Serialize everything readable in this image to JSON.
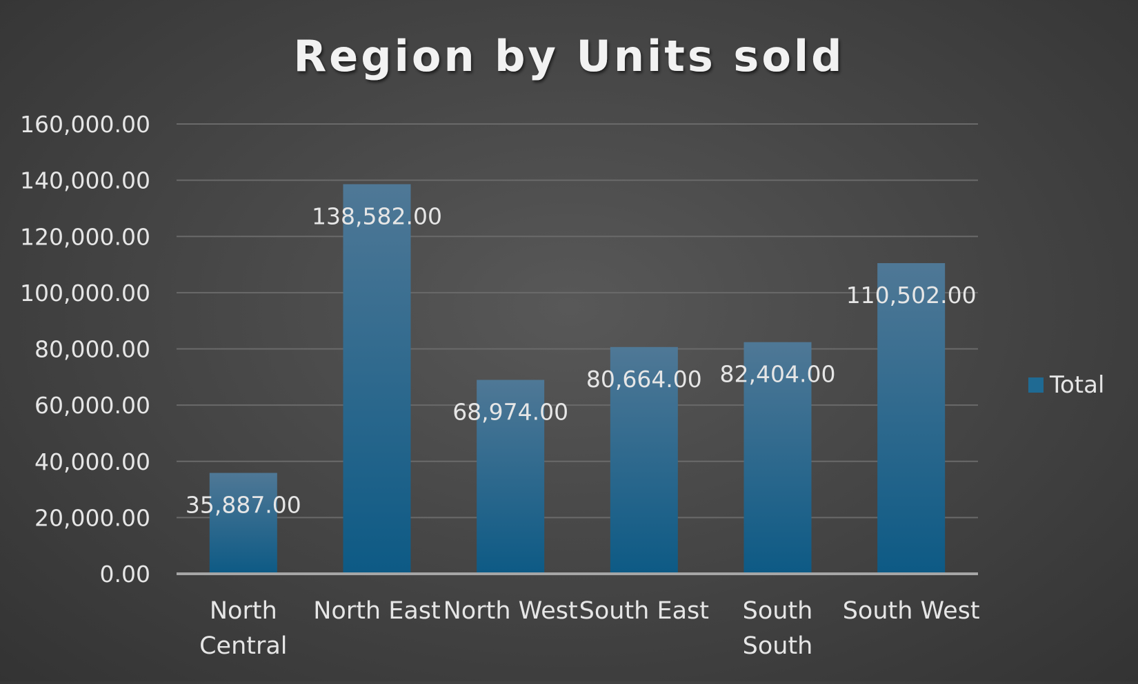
{
  "chart_data": {
    "type": "bar",
    "title": "Region by Units sold",
    "categories": [
      "North Central",
      "North East",
      "North West",
      "South East",
      "South South",
      "South West"
    ],
    "category_lines": [
      [
        "North",
        "Central"
      ],
      [
        "North East"
      ],
      [
        "North West"
      ],
      [
        "South East"
      ],
      [
        "South",
        "South"
      ],
      [
        "South West"
      ]
    ],
    "series": [
      {
        "name": "Total",
        "values": [
          35887,
          138582,
          68974,
          80664,
          82404,
          110502
        ],
        "labels": [
          "35,887.00",
          "138,582.00",
          "68,974.00",
          "80,664.00",
          "82,404.00",
          "110,502.00"
        ],
        "color": "#1f6a93"
      }
    ],
    "ylim": [
      0,
      160000
    ],
    "yticks": [
      0,
      20000,
      40000,
      60000,
      80000,
      100000,
      120000,
      140000,
      160000
    ],
    "ytick_labels": [
      "0.00",
      "20,000.00",
      "40,000.00",
      "60,000.00",
      "80,000.00",
      "100,000.00",
      "120,000.00",
      "140,000.00",
      "160,000.00"
    ],
    "grid": true,
    "legend_position": "right",
    "colors": {
      "bar_top": "#4f7896",
      "bar_bottom": "#0d5a85",
      "text": "#e6e6e6",
      "title": "#f2f2f2",
      "grid": "#6a6a6a",
      "axis": "#a6a6a6"
    }
  }
}
